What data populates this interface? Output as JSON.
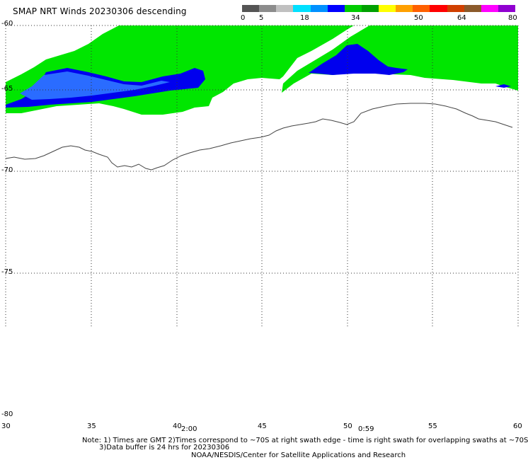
{
  "title": "SMAP NRT Winds  20230306 descending",
  "legend": {
    "labels": [
      "0",
      "5",
      "18",
      "34",
      "50",
      "64",
      "80"
    ],
    "colors": [
      "#555555",
      "#8c8c8c",
      "#c0c0c0",
      "#00e0ff",
      "#0090ff",
      "#0000ff",
      "#00cc00",
      "#00a000",
      "#ffff00",
      "#ffa000",
      "#ff6000",
      "#ff0000",
      "#d04000",
      "#8b5a2b",
      "#ff00ff",
      "#9000d0"
    ]
  },
  "lat_labels": [
    "-60",
    "-65",
    "-70",
    "-75",
    "-80"
  ],
  "lon_labels": [
    "30",
    "35",
    "40",
    "45",
    "50",
    "55",
    "60"
  ],
  "swath_times": [
    "2:00",
    "0:59"
  ],
  "notes": {
    "line1": "Note: 1) Times are GMT 2)Times correspond to ~70S at right swath edge - time is right swath for overlapping swaths at ~70S",
    "line2": "3)Data buffer is 24 hrs for 20230306",
    "line3": "NOAA/NESDIS/Center for Satellite Applications and Research"
  },
  "colors": {
    "wind_18_34": "#00e600",
    "wind_5_18_deep": "#0000ee",
    "wind_5_18_light": "#2266ff",
    "coastline": "#444444",
    "grid": "#333333"
  }
}
